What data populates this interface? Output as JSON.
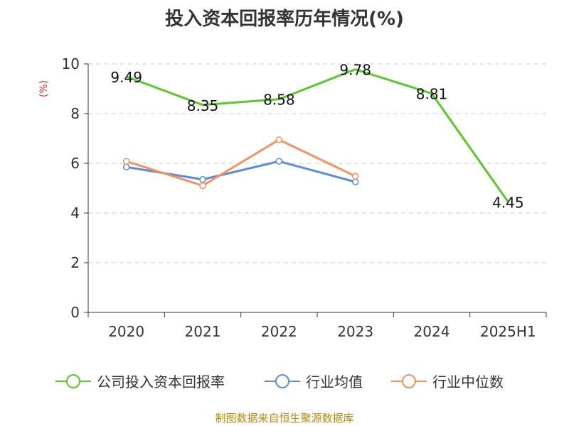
{
  "title": "投入资本回报率历年情况(%)",
  "source": "制图数据来自恒生聚源数据库",
  "chart_data": {
    "type": "line",
    "title": "投入资本回报率历年情况(%)",
    "categories": [
      "2020",
      "2021",
      "2022",
      "2023",
      "2024",
      "2025H1"
    ],
    "ylabel": "(%)",
    "ylim": [
      0,
      10
    ],
    "yticks": [
      0,
      2,
      4,
      6,
      8,
      10
    ],
    "grid": true,
    "legend_position": "bottom",
    "series": [
      {
        "name": "公司投入资本回报率",
        "values": [
          9.49,
          8.35,
          8.58,
          9.78,
          8.81,
          4.45
        ],
        "color": "#5cc72b",
        "labels": [
          "9.49",
          "8.35",
          "8.58",
          "9.78",
          "8.81",
          "4.45"
        ],
        "markers": false
      },
      {
        "name": "行业均值",
        "values": [
          5.85,
          5.35,
          6.08,
          5.25,
          null,
          null
        ],
        "color": "#5b8bd9",
        "markers": true
      },
      {
        "name": "行业中位数",
        "values": [
          6.08,
          5.1,
          6.95,
          5.48,
          null,
          null
        ],
        "color": "#f5915f",
        "markers": true
      }
    ]
  }
}
